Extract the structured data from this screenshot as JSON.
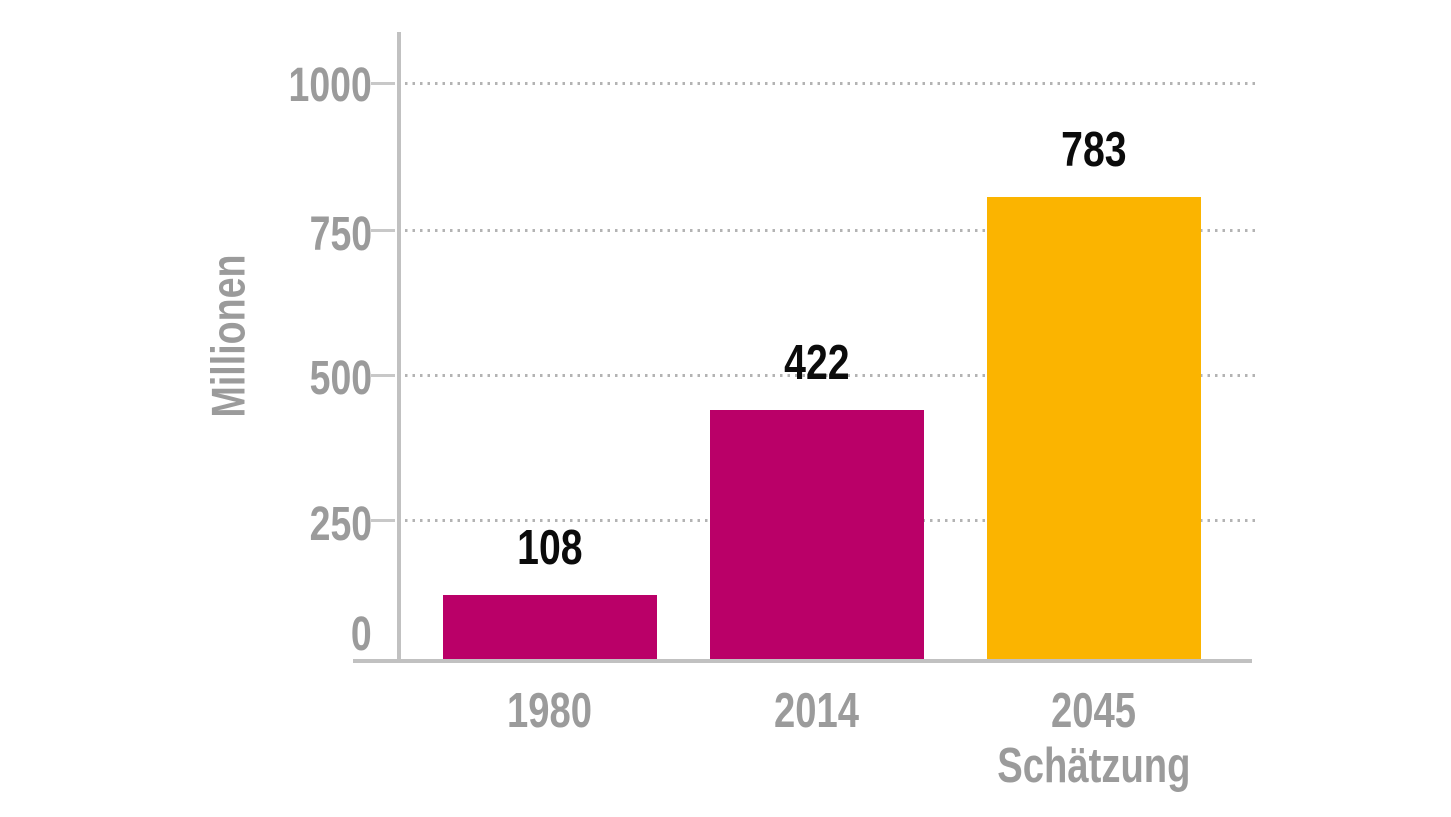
{
  "chart_data": {
    "type": "bar",
    "categories": [
      "1980",
      "2014",
      "2045 Schätzung"
    ],
    "categories_lines": [
      [
        "1980",
        ""
      ],
      [
        "2014",
        ""
      ],
      [
        "2045",
        "Schätzung"
      ]
    ],
    "values": [
      108,
      422,
      783
    ],
    "value_labels": [
      "108",
      "422",
      "783"
    ],
    "bar_colors": [
      "#ba0068",
      "#ba0068",
      "#fbb400"
    ],
    "title": "",
    "xlabel": "",
    "ylabel": "Millionen",
    "ylim": [
      0,
      1000
    ],
    "yticks": [
      0,
      250,
      500,
      750,
      1000
    ],
    "ytick_labels": [
      "0",
      "250",
      "500",
      "750",
      "1000"
    ],
    "grid": "dotted horizontal gridlines at 250/500/750/1000, drawn behind bars",
    "legend": "none"
  },
  "colors": {
    "bar_magenta": "#ba0068",
    "bar_amber": "#fbb400",
    "axis_line": "#c1c1c1",
    "tick_mark": "#c8c8c8",
    "grid_dots": "#b3b3b3",
    "axis_text": "#9b9b9b",
    "value_text": "#0b0b0b",
    "background": "#ffffff"
  }
}
